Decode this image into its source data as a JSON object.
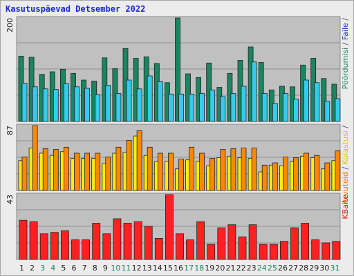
{
  "title": "Kasutuspäevad Detsember 2022",
  "chart_data": [
    {
      "type": "bar",
      "ytick": "200",
      "ylim": [
        0,
        200
      ],
      "categories": [
        "1",
        "2",
        "3",
        "4",
        "5",
        "6",
        "7",
        "8",
        "9",
        "10",
        "11",
        "12",
        "13",
        "14",
        "15",
        "16",
        "17",
        "18",
        "19",
        "20",
        "21",
        "22",
        "23",
        "24",
        "25",
        "26",
        "27",
        "28",
        "29",
        "30",
        "31"
      ],
      "series": [
        {
          "name": "Pöördumisi",
          "color": "#1a8560",
          "values": [
            126,
            124,
            91,
            96,
            101,
            93,
            80,
            78,
            123,
            102,
            141,
            122,
            125,
            112,
            75,
            200,
            92,
            85,
            113,
            66,
            93,
            118,
            144,
            114,
            61,
            68,
            67,
            109,
            122,
            83,
            72
          ]
        },
        {
          "name": "Faile",
          "color": "#33ccee",
          "values": [
            74,
            67,
            63,
            62,
            73,
            67,
            64,
            52,
            70,
            54,
            80,
            63,
            88,
            77,
            53,
            53,
            53,
            54,
            61,
            48,
            54,
            68,
            115,
            54,
            35,
            54,
            43,
            80,
            75,
            39,
            44
          ]
        }
      ],
      "right_label": [
        {
          "text": "Pöördumisi",
          "color": "#1a8560"
        },
        {
          "text": " / ",
          "color": "#555555"
        },
        {
          "text": "Faile",
          "color": "#1a2bd6"
        },
        {
          "text": " / ",
          "color": "#555555"
        }
      ]
    },
    {
      "type": "bar",
      "ytick": "87",
      "ylim": [
        0,
        87
      ],
      "categories": [
        "1",
        "2",
        "3",
        "4",
        "5",
        "6",
        "7",
        "8",
        "9",
        "10",
        "11",
        "12",
        "13",
        "14",
        "15",
        "16",
        "17",
        "18",
        "19",
        "20",
        "21",
        "22",
        "23",
        "24",
        "25",
        "26",
        "27",
        "28",
        "29",
        "30",
        "31"
      ],
      "series": [
        {
          "name": "Külastusi",
          "color": "#ffee00",
          "values": [
            40,
            57,
            50,
            47,
            52,
            43,
            43,
            43,
            36,
            50,
            51,
            73,
            47,
            39,
            39,
            29,
            41,
            39,
            33,
            44,
            46,
            44,
            43,
            25,
            34,
            33,
            39,
            46,
            44,
            29,
            40
          ]
        },
        {
          "name": "Arvuteid",
          "color": "#ff8800",
          "values": [
            45,
            87,
            56,
            55,
            58,
            50,
            50,
            50,
            45,
            58,
            67,
            80,
            58,
            50,
            50,
            42,
            58,
            50,
            43,
            55,
            56,
            57,
            57,
            34,
            37,
            45,
            44,
            50,
            47,
            37,
            53
          ]
        }
      ],
      "right_label": [
        {
          "text": "Arvuteid",
          "color": "#ee7700"
        },
        {
          "text": " / ",
          "color": "#555555"
        },
        {
          "text": "Külastusi",
          "color": "#d8c800"
        },
        {
          "text": " / ",
          "color": "#555555"
        }
      ]
    },
    {
      "type": "bar",
      "ytick": "43",
      "ylim": [
        0,
        43
      ],
      "categories": [
        "1",
        "2",
        "3",
        "4",
        "5",
        "6",
        "7",
        "8",
        "9",
        "10",
        "11",
        "12",
        "13",
        "14",
        "15",
        "16",
        "17",
        "18",
        "19",
        "20",
        "21",
        "22",
        "23",
        "24",
        "25",
        "26",
        "27",
        "28",
        "29",
        "30",
        "31"
      ],
      "series": [
        {
          "name": "KBaite",
          "color": "#ff2020",
          "values": [
            26,
            25,
            17,
            18,
            19,
            13,
            13,
            24,
            17,
            27,
            24,
            25,
            22,
            14,
            43,
            17,
            13,
            25,
            10,
            21,
            23,
            15,
            23,
            10,
            10,
            12,
            21,
            24,
            13,
            11,
            12
          ]
        }
      ],
      "right_label": [
        {
          "text": "KBaite",
          "color": "#dd1111"
        }
      ]
    }
  ],
  "weekend_days": [
    "3",
    "4",
    "10",
    "11",
    "17",
    "18",
    "24",
    "25",
    "31"
  ],
  "weekday_color": "#222222",
  "weekend_color": "#1a8560"
}
